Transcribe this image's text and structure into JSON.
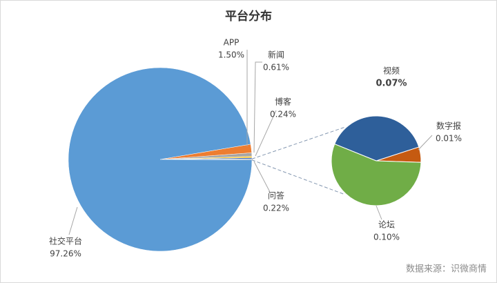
{
  "chart_data": [
    {
      "type": "pie",
      "title": "平台分布",
      "categories": [
        "社交平台",
        "APP",
        "新闻",
        "博客",
        "问答"
      ],
      "values": [
        97.26,
        1.5,
        0.61,
        0.24,
        0.22
      ],
      "value_labels": [
        "97.26%",
        "1.50%",
        "0.61%",
        "0.24%",
        "0.22%"
      ],
      "colors": [
        "#5b9bd5",
        "#ed7d31",
        "#a5a5a5",
        "#ffc000",
        "#4472c4"
      ],
      "other_color": "#8a9bb0"
    },
    {
      "type": "pie",
      "categories": [
        "数字报",
        "视频",
        "论坛"
      ],
      "values": [
        0.01,
        0.07,
        0.1
      ],
      "value_labels": [
        "0.01%",
        "0.07%",
        "0.10%"
      ],
      "colors": [
        "#c55a11",
        "#2e5f9a",
        "#70ad47"
      ]
    }
  ],
  "source": "数据来源：识微商情"
}
